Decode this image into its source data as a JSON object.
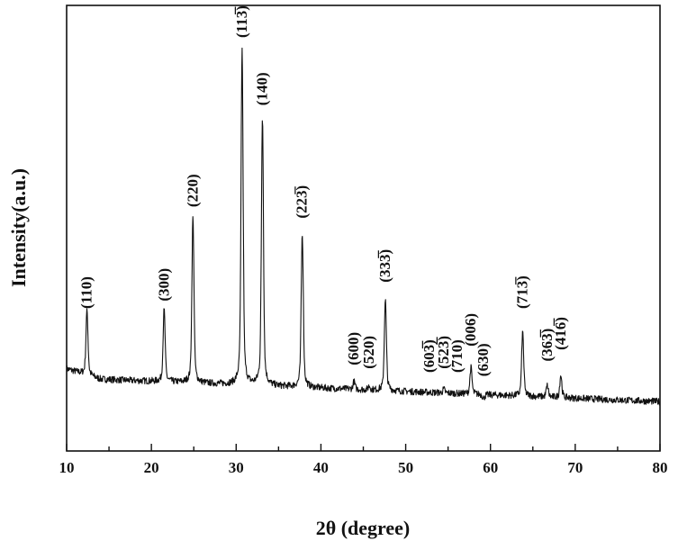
{
  "chart_data": {
    "type": "line",
    "xlabel": "2θ (degree)",
    "ylabel": "Intensity(a.u.)",
    "xlim": [
      10,
      80
    ],
    "ylim": [
      0,
      100
    ],
    "xticks": [
      "10",
      "20",
      "30",
      "40",
      "50",
      "60",
      "70",
      "80"
    ],
    "yticks": [],
    "grid": false,
    "line_color": "#111111",
    "baseline": 12,
    "peaks": [
      {
        "x": 12.4,
        "y": 28,
        "label": "(110)"
      },
      {
        "x": 21.5,
        "y": 30,
        "label": "(300)"
      },
      {
        "x": 24.9,
        "y": 55,
        "label": "(220)"
      },
      {
        "x": 30.7,
        "y": 100,
        "label": "(113̅)"
      },
      {
        "x": 33.1,
        "y": 82,
        "label": "(140)"
      },
      {
        "x": 37.8,
        "y": 52,
        "label": "(223̅)"
      },
      {
        "x": 43.9,
        "y": 13,
        "label": "(600)"
      },
      {
        "x": 45.7,
        "y": 12,
        "label": "(520)"
      },
      {
        "x": 47.6,
        "y": 35,
        "label": "(333̅)"
      },
      {
        "x": 52.8,
        "y": 11,
        "label": "(603̅)"
      },
      {
        "x": 54.5,
        "y": 12,
        "label": "(523̅)"
      },
      {
        "x": 56.1,
        "y": 11,
        "label": "(710)"
      },
      {
        "x": 57.7,
        "y": 18,
        "label": "(006)"
      },
      {
        "x": 59.2,
        "y": 10,
        "label": "(630)"
      },
      {
        "x": 63.8,
        "y": 28,
        "label": "(713̅)"
      },
      {
        "x": 66.7,
        "y": 14,
        "label": "(363̅)"
      },
      {
        "x": 68.3,
        "y": 17,
        "label": "(416̅)"
      }
    ]
  }
}
